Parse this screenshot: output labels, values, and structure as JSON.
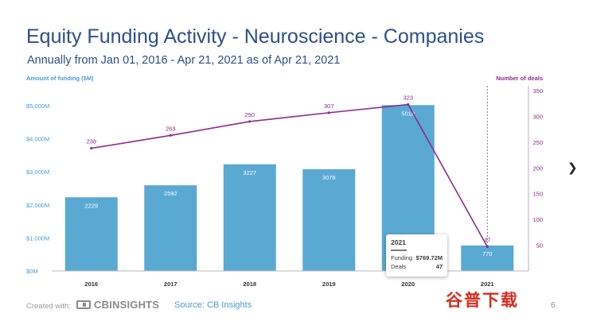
{
  "header": {
    "title": "Equity Funding Activity - Neuroscience - Companies",
    "subtitle": "Annually from Jan 01, 2016 - Apr 21, 2021 as of Apr 21, 2021"
  },
  "chart_data": {
    "type": "bar",
    "categories": [
      "2016",
      "2017",
      "2018",
      "2019",
      "2020",
      "2021"
    ],
    "left_axis": {
      "label": "Amount of funding ($M)",
      "ticks": [
        "$0M",
        "$1,000M",
        "$2,000M",
        "$3,000M",
        "$4,000M",
        "$5,000M"
      ],
      "ylim": [
        0,
        5500
      ]
    },
    "right_axis": {
      "label": "Number of deals",
      "ticks": [
        "50",
        "100",
        "150",
        "200",
        "250",
        "300",
        "350"
      ],
      "ylim": [
        0,
        350
      ]
    },
    "series": [
      {
        "name": "Funding",
        "type": "bar",
        "axis": "left",
        "values": [
          2229,
          2592,
          3227,
          3078,
          5018,
          770
        ],
        "labels": [
          "2229",
          "2592",
          "3227",
          "3078",
          "5018",
          "770"
        ]
      },
      {
        "name": "Deals",
        "type": "line",
        "axis": "right",
        "values": [
          238,
          263,
          290,
          307,
          323,
          47
        ],
        "labels": [
          "238",
          "263",
          "290",
          "307",
          "323",
          "47"
        ]
      }
    ],
    "colors": {
      "bar": "#5aa9d3",
      "line": "#8e2a8f",
      "axis_left": "#4b9bd0",
      "axis_right": "#8e2a8f"
    },
    "grid": false,
    "highlight_category": "2021"
  },
  "tooltip": {
    "year": "2021",
    "rows": [
      {
        "label": "Funding",
        "value": "$769.72M"
      },
      {
        "label": "Deals",
        "value": "47"
      }
    ]
  },
  "footer": {
    "created_with": "Created with:",
    "logo_text": "CBINSIGHTS",
    "source": "Source: CB Insights",
    "page_number": "6"
  },
  "watermark": {
    "glyphs": [
      "谷",
      "普",
      "下",
      "载"
    ]
  },
  "nav": {
    "next_icon": "chevron-right-icon"
  }
}
